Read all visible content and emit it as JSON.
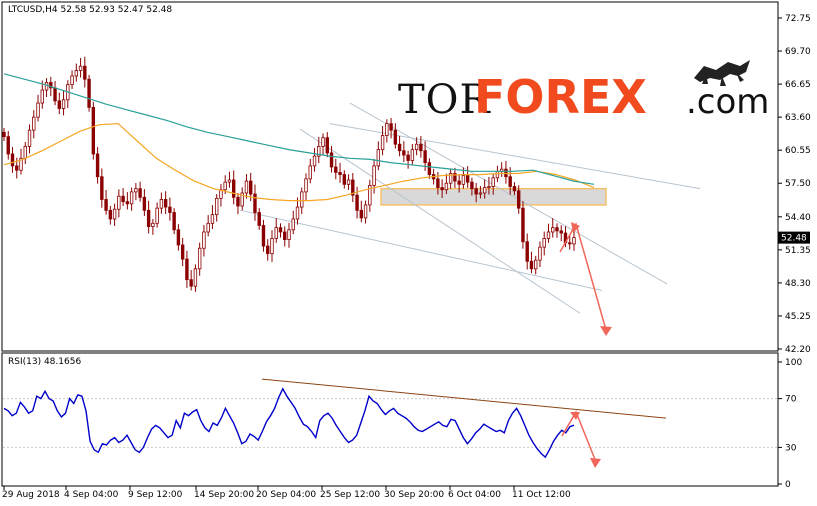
{
  "chart_data": [
    {
      "type": "candlestick",
      "header": "LTCUSD,H4  52.58 52.93 52.47 52.48",
      "symbol": "LTCUSD",
      "timeframe": "H4",
      "ohlc_last": [
        52.58,
        52.93,
        52.47,
        52.48
      ],
      "current_price_label": "52.48",
      "y_ticks": [
        "72.75",
        "69.70",
        "66.65",
        "63.60",
        "60.55",
        "57.50",
        "54.40",
        "51.35",
        "48.30",
        "45.25",
        "42.20"
      ],
      "ylim": [
        42.2,
        72.75
      ],
      "x_ticks": [
        "29 Aug 2018",
        "4 Sep 04:00",
        "9 Sep 12:00",
        "14 Sep 20:00",
        "20 Sep 04:00",
        "25 Sep 12:00",
        "30 Sep 20:00",
        "6 Oct 04:00",
        "11 Oct 12:00"
      ],
      "close_series": [
        61.8,
        60.2,
        59.1,
        58.7,
        59.8,
        60.9,
        62.4,
        63.6,
        64.9,
        66.1,
        66.8,
        66.3,
        65.1,
        64.4,
        65.2,
        66.6,
        67.4,
        67.9,
        68.3,
        67.1,
        64.5,
        60.2,
        58.1,
        56.0,
        55.0,
        54.2,
        55.1,
        56.3,
        55.8,
        55.6,
        56.7,
        57.0,
        56.2,
        55.0,
        53.5,
        53.8,
        55.2,
        56.0,
        55.3,
        54.8,
        53.2,
        51.8,
        50.5,
        48.6,
        48.0,
        49.6,
        51.5,
        53.0,
        53.8,
        54.6,
        56.1,
        56.9,
        57.6,
        57.8,
        56.2,
        55.4,
        56.6,
        57.7,
        56.5,
        54.8,
        53.6,
        51.7,
        51.0,
        52.4,
        53.4,
        53.0,
        52.3,
        53.2,
        54.2,
        55.3,
        56.7,
        57.9,
        59.1,
        60.0,
        60.9,
        61.7,
        60.3,
        59.0,
        58.5,
        58.3,
        57.4,
        57.8,
        56.4,
        55.0,
        54.3,
        55.5,
        57.3,
        59.1,
        60.6,
        61.9,
        63.0,
        62.4,
        61.1,
        60.5,
        60.1,
        59.6,
        60.6,
        61.1,
        60.5,
        59.4,
        58.3,
        57.9,
        57.1,
        56.9,
        57.5,
        58.4,
        57.7,
        57.4,
        58.2,
        57.6,
        57.0,
        56.5,
        56.6,
        57.1,
        57.2,
        58.0,
        58.6,
        58.8,
        58.1,
        57.2,
        56.8,
        55.2,
        52.1,
        50.3,
        49.6,
        50.4,
        51.6,
        52.4,
        53.0,
        53.4,
        53.1,
        52.9,
        52.0,
        51.9,
        52.48
      ],
      "moving_averages": [
        {
          "color": "#f5a623",
          "values": [
            59.2,
            59.7,
            60.5,
            61.4,
            62.3,
            62.9,
            63.0,
            61.4,
            59.8,
            58.7,
            57.7,
            57.0,
            56.6,
            56.2,
            56.0,
            55.9,
            55.9,
            56.0,
            56.4,
            56.9,
            57.3,
            57.7,
            58.0,
            58.2,
            58.3,
            58.3,
            58.4,
            58.4,
            58.6,
            58.3,
            57.8,
            57.1
          ]
        },
        {
          "color": "#2aa198",
          "values": [
            67.6,
            67.1,
            66.6,
            66.0,
            65.4,
            64.8,
            64.3,
            63.8,
            63.3,
            62.7,
            62.2,
            61.8,
            61.4,
            61.0,
            60.6,
            60.3,
            60.0,
            59.8,
            59.7,
            59.4,
            59.2,
            59.0,
            58.8,
            58.6,
            58.6,
            58.6,
            58.7,
            58.2,
            57.7,
            57.4
          ]
        }
      ],
      "resistance_zone": [
        55.5,
        57.0
      ]
    },
    {
      "type": "line",
      "indicator_label": "RSI(13) 48.1656",
      "indicator": "RSI(13)",
      "current_value": 48.1656,
      "y_ticks": [
        "100",
        "70",
        "30",
        "0"
      ],
      "ylim": [
        0,
        100
      ],
      "series": [
        {
          "color": "#0000cc",
          "values": [
            62,
            60,
            56,
            58,
            67,
            63,
            58,
            60,
            72,
            70,
            76,
            70,
            68,
            60,
            55,
            58,
            70,
            66,
            73,
            72,
            60,
            35,
            28,
            26,
            33,
            32,
            36,
            38,
            34,
            36,
            40,
            34,
            28,
            26,
            30,
            38,
            45,
            48,
            46,
            42,
            38,
            40,
            52,
            46,
            58,
            56,
            59,
            61,
            52,
            46,
            43,
            50,
            48,
            54,
            62,
            56,
            50,
            42,
            33,
            35,
            41,
            39,
            36,
            43,
            51,
            56,
            62,
            71,
            78,
            72,
            67,
            62,
            55,
            49,
            47,
            43,
            38,
            52,
            56,
            58,
            54,
            48,
            43,
            38,
            34,
            36,
            40,
            50,
            60,
            72,
            68,
            66,
            61,
            57,
            60,
            62,
            58,
            56,
            54,
            51,
            47,
            44,
            43,
            45,
            47,
            49,
            51,
            48,
            47,
            53,
            52,
            45,
            38,
            33,
            37,
            42,
            45,
            49,
            47,
            45,
            43,
            44,
            42,
            52,
            58,
            62,
            56,
            48,
            40,
            34,
            29,
            25,
            22,
            28,
            35,
            40,
            44,
            42,
            47,
            48.2
          ]
        }
      ]
    }
  ],
  "watermark": {
    "part1": "TOR",
    "part2": "FOREX",
    "part3": ".com"
  }
}
